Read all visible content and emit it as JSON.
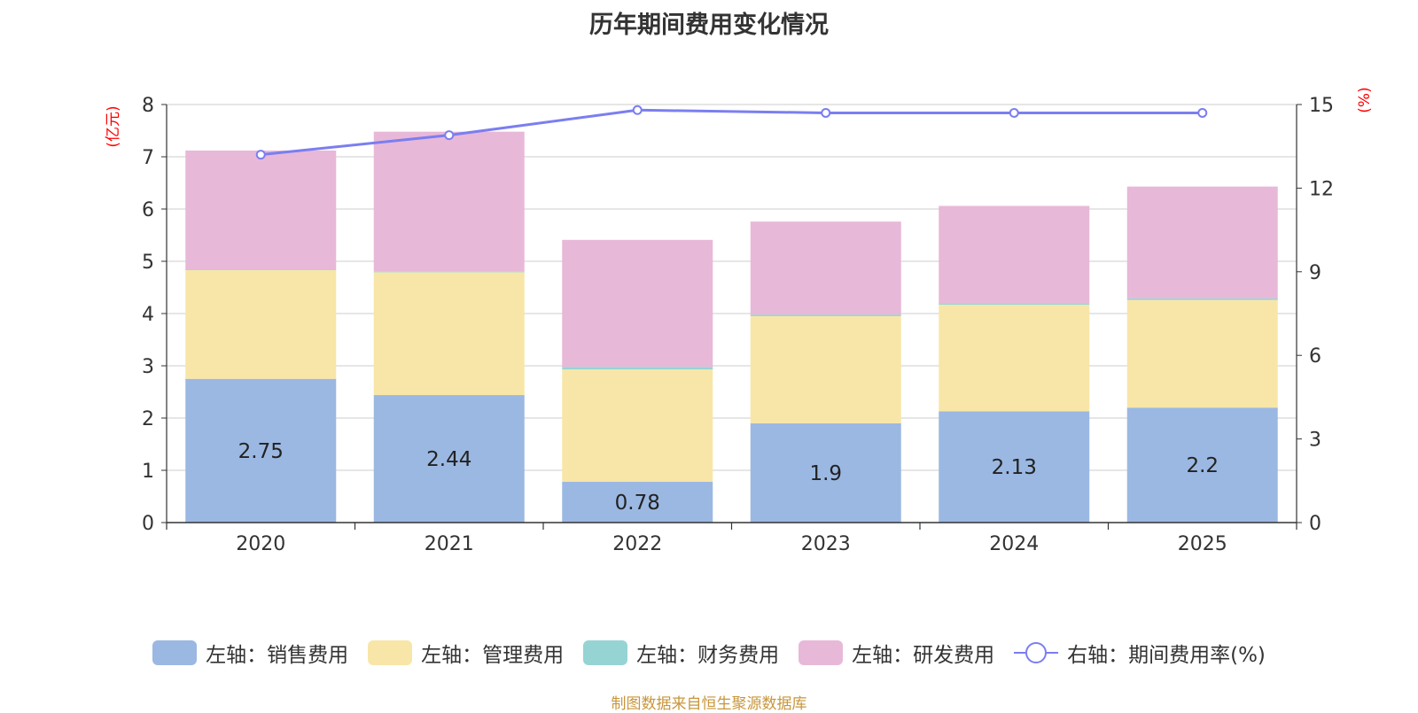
{
  "title": "历年期间费用变化情况",
  "source_note": "制图数据来自恒生聚源数据库",
  "colors": {
    "sales": "#9bb8e2",
    "admin": "#f8e6a8",
    "finance": "#96d4d4",
    "rnd": "#e8b8d8",
    "rate": "#7b7ef0",
    "axis_unit": "#ff0000",
    "grid": "#cccccc"
  },
  "chart_data": {
    "type": "bar",
    "stacked": true,
    "categories": [
      "2020",
      "2021",
      "2022",
      "2023",
      "2024",
      "2025"
    ],
    "series": [
      {
        "name": "左轴：销售费用",
        "axis": "left",
        "values": [
          2.75,
          2.44,
          0.78,
          1.9,
          2.13,
          2.2
        ],
        "show_labels": true
      },
      {
        "name": "左轴：管理费用",
        "axis": "left",
        "values": [
          2.08,
          2.35,
          2.15,
          2.05,
          2.04,
          2.06
        ]
      },
      {
        "name": "左轴：财务费用",
        "axis": "left",
        "values": [
          0.01,
          0.01,
          0.05,
          0.03,
          0.03,
          0.03
        ]
      },
      {
        "name": "左轴：研发费用",
        "axis": "left",
        "values": [
          2.28,
          2.68,
          2.43,
          1.78,
          1.86,
          2.14
        ]
      },
      {
        "name": "右轴：期间费用率(%)",
        "axis": "right",
        "type": "line",
        "values": [
          13.2,
          13.9,
          14.8,
          14.7,
          14.7,
          14.7
        ]
      }
    ],
    "left_axis": {
      "unit": "(亿元)",
      "min": 0,
      "max": 8,
      "ticks": [
        0,
        1,
        2,
        3,
        4,
        5,
        6,
        7,
        8
      ]
    },
    "right_axis": {
      "unit": "(%)",
      "min": 0,
      "max": 15,
      "ticks": [
        0,
        3,
        6,
        9,
        12,
        15
      ]
    },
    "grid": true,
    "legend_position": "bottom"
  }
}
